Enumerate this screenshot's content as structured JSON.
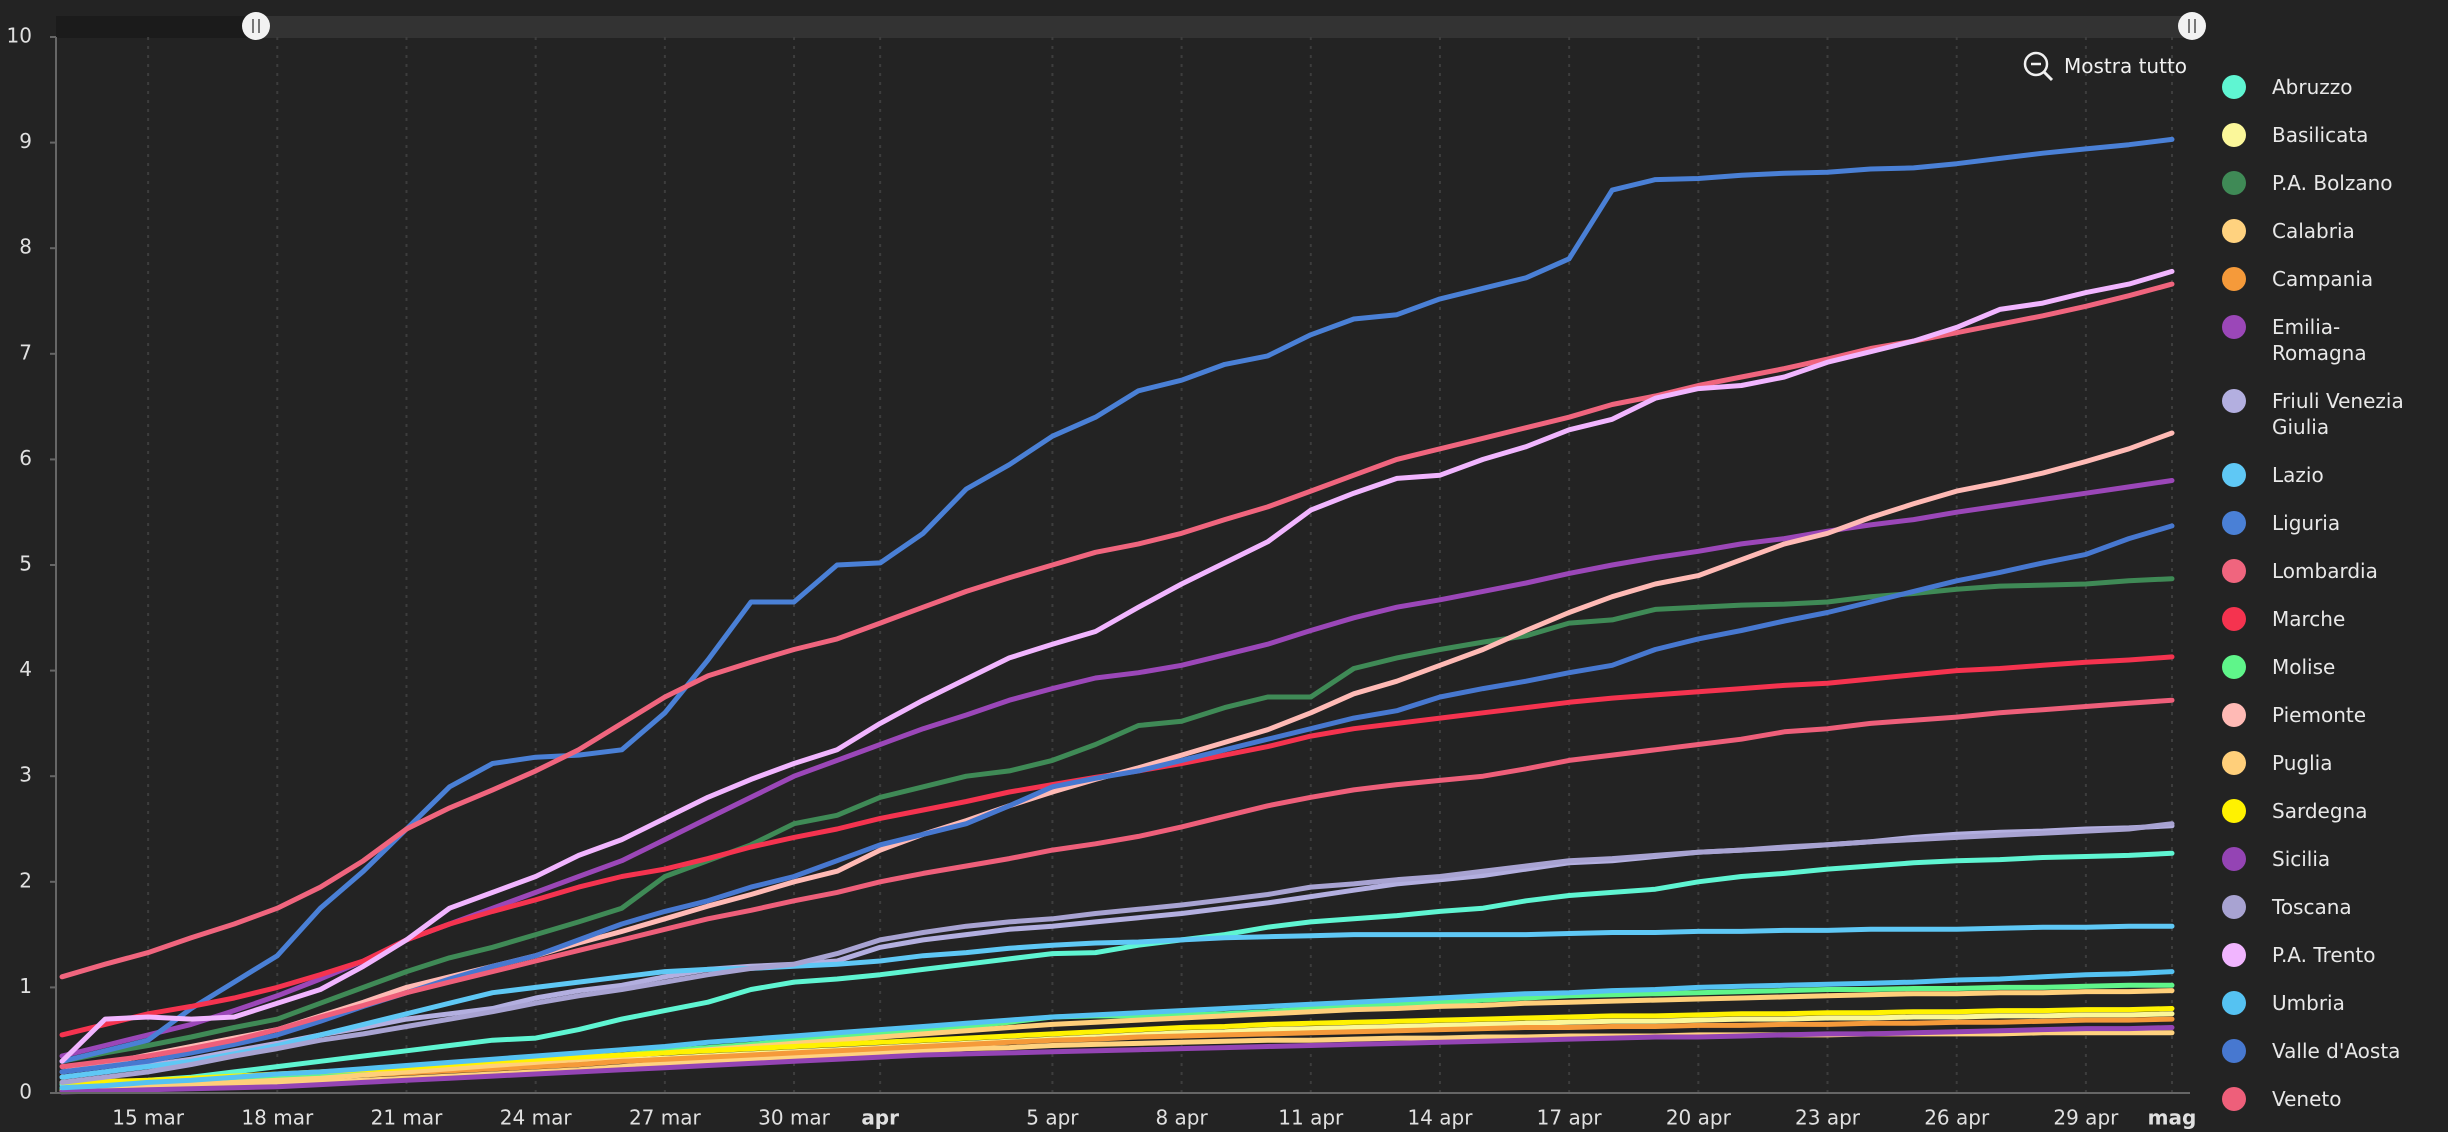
{
  "chart_data": {
    "type": "line",
    "zoom_button": "Mostra tutto",
    "categories": [
      null,
      null,
      "15 mar",
      null,
      null,
      "18 mar",
      null,
      null,
      "21 mar",
      null,
      null,
      "24 mar",
      null,
      null,
      "27 mar",
      null,
      null,
      "30 mar",
      null,
      "apr",
      null,
      null,
      null,
      "5 apr",
      null,
      null,
      "8 apr",
      null,
      null,
      "11 apr",
      null,
      null,
      "14 apr",
      null,
      null,
      "17 apr",
      null,
      null,
      "20 apr",
      null,
      null,
      "23 apr",
      null,
      null,
      "26 apr",
      null,
      null,
      "29 apr",
      null,
      "mag"
    ],
    "ylim": [
      0,
      10
    ],
    "yticks": [
      0,
      1,
      2,
      3,
      4,
      5,
      6,
      7,
      8,
      9,
      10
    ],
    "grid": true,
    "legend": "right",
    "series": [
      {
        "name": "Abruzzo",
        "color": "#5ff5d2",
        "values": [
          0.08,
          0.1,
          0.12,
          0.15,
          0.2,
          0.25,
          0.3,
          0.35,
          0.4,
          0.45,
          0.5,
          0.52,
          0.6,
          0.7,
          0.78,
          0.86,
          0.98,
          1.05,
          1.08,
          1.12,
          1.17,
          1.22,
          1.27,
          1.32,
          1.33,
          1.4,
          1.45,
          1.5,
          1.57,
          1.62,
          1.65,
          1.68,
          1.72,
          1.75,
          1.82,
          1.87,
          1.9,
          1.93,
          2.0,
          2.05,
          2.08,
          2.12,
          2.15,
          2.18,
          2.2,
          2.21,
          2.23,
          2.24,
          2.25,
          2.27
        ]
      },
      {
        "name": "Basilicata",
        "color": "#fbf79a",
        "values": [
          0.05,
          0.06,
          0.08,
          0.1,
          0.12,
          0.14,
          0.16,
          0.18,
          0.2,
          0.22,
          0.25,
          0.27,
          0.29,
          0.31,
          0.33,
          0.35,
          0.37,
          0.39,
          0.41,
          0.43,
          0.45,
          0.47,
          0.49,
          0.51,
          0.53,
          0.55,
          0.57,
          0.58,
          0.6,
          0.61,
          0.62,
          0.63,
          0.64,
          0.65,
          0.66,
          0.67,
          0.68,
          0.68,
          0.69,
          0.7,
          0.7,
          0.71,
          0.71,
          0.72,
          0.72,
          0.73,
          0.73,
          0.74,
          0.74,
          0.75
        ]
      },
      {
        "name": "P.A. Bolzano",
        "color": "#3f8a56",
        "values": [
          0.3,
          0.38,
          0.45,
          0.53,
          0.62,
          0.7,
          0.85,
          1.0,
          1.15,
          1.28,
          1.38,
          1.5,
          1.62,
          1.75,
          2.05,
          2.2,
          2.35,
          2.55,
          2.63,
          2.8,
          2.9,
          3.0,
          3.05,
          3.15,
          3.3,
          3.48,
          3.52,
          3.65,
          3.75,
          3.75,
          4.02,
          4.12,
          4.2,
          4.27,
          4.33,
          4.45,
          4.48,
          4.58,
          4.6,
          4.62,
          4.63,
          4.65,
          4.7,
          4.73,
          4.77,
          4.8,
          4.81,
          4.82,
          4.85,
          4.87
        ]
      },
      {
        "name": "Calabria",
        "color": "#ffd27f",
        "values": [
          0.02,
          0.03,
          0.04,
          0.05,
          0.06,
          0.08,
          0.1,
          0.12,
          0.14,
          0.16,
          0.18,
          0.2,
          0.22,
          0.25,
          0.28,
          0.3,
          0.32,
          0.34,
          0.36,
          0.38,
          0.4,
          0.42,
          0.43,
          0.45,
          0.46,
          0.47,
          0.48,
          0.49,
          0.5,
          0.5,
          0.51,
          0.52,
          0.52,
          0.53,
          0.53,
          0.54,
          0.54,
          0.54,
          0.55,
          0.55,
          0.55,
          0.55,
          0.56,
          0.56,
          0.56,
          0.56,
          0.57,
          0.57,
          0.57,
          0.57
        ]
      },
      {
        "name": "Campania",
        "color": "#f59a3a",
        "values": [
          0.03,
          0.05,
          0.07,
          0.09,
          0.11,
          0.13,
          0.15,
          0.17,
          0.19,
          0.21,
          0.23,
          0.25,
          0.27,
          0.3,
          0.32,
          0.34,
          0.36,
          0.38,
          0.4,
          0.42,
          0.44,
          0.46,
          0.48,
          0.5,
          0.51,
          0.53,
          0.54,
          0.55,
          0.56,
          0.57,
          0.58,
          0.59,
          0.6,
          0.61,
          0.62,
          0.62,
          0.63,
          0.63,
          0.64,
          0.64,
          0.65,
          0.65,
          0.66,
          0.66,
          0.67,
          0.67,
          0.68,
          0.69,
          0.69,
          0.7
        ]
      },
      {
        "name": "Emilia-Romagna",
        "color": "#9b47b8",
        "values": [
          0.35,
          0.45,
          0.55,
          0.65,
          0.78,
          0.92,
          1.08,
          1.25,
          1.45,
          1.6,
          1.75,
          1.9,
          2.05,
          2.2,
          2.4,
          2.6,
          2.8,
          3.0,
          3.15,
          3.3,
          3.45,
          3.58,
          3.72,
          3.83,
          3.93,
          3.98,
          4.05,
          4.15,
          4.25,
          4.38,
          4.5,
          4.6,
          4.67,
          4.75,
          4.83,
          4.92,
          5.0,
          5.07,
          5.13,
          5.2,
          5.25,
          5.32,
          5.38,
          5.43,
          5.5,
          5.56,
          5.62,
          5.68,
          5.74,
          5.8
        ]
      },
      {
        "name": "Friuli Venezia Giulia",
        "color": "#b3afe0",
        "values": [
          0.15,
          0.2,
          0.26,
          0.32,
          0.4,
          0.47,
          0.55,
          0.62,
          0.7,
          0.75,
          0.8,
          0.9,
          0.97,
          1.02,
          1.1,
          1.17,
          1.2,
          1.22,
          1.25,
          1.38,
          1.45,
          1.5,
          1.55,
          1.58,
          1.62,
          1.66,
          1.7,
          1.75,
          1.8,
          1.86,
          1.92,
          1.98,
          2.02,
          2.06,
          2.12,
          2.18,
          2.2,
          2.24,
          2.28,
          2.3,
          2.32,
          2.35,
          2.38,
          2.42,
          2.45,
          2.47,
          2.48,
          2.5,
          2.51,
          2.53
        ]
      },
      {
        "name": "Lazio",
        "color": "#5fc8f5",
        "values": [
          0.15,
          0.2,
          0.25,
          0.3,
          0.37,
          0.45,
          0.55,
          0.65,
          0.75,
          0.85,
          0.95,
          1.0,
          1.05,
          1.1,
          1.15,
          1.17,
          1.18,
          1.2,
          1.22,
          1.25,
          1.3,
          1.33,
          1.37,
          1.4,
          1.42,
          1.43,
          1.45,
          1.47,
          1.48,
          1.49,
          1.5,
          1.5,
          1.5,
          1.5,
          1.5,
          1.51,
          1.52,
          1.52,
          1.53,
          1.53,
          1.54,
          1.54,
          1.55,
          1.55,
          1.55,
          1.56,
          1.57,
          1.57,
          1.58,
          1.58
        ]
      },
      {
        "name": "Liguria",
        "color": "#4a80d6",
        "values": [
          0.3,
          0.4,
          0.5,
          0.8,
          1.05,
          1.3,
          1.75,
          2.1,
          2.5,
          2.9,
          3.12,
          3.18,
          3.2,
          3.25,
          3.6,
          4.1,
          4.65,
          4.65,
          5.0,
          5.02,
          5.3,
          5.72,
          5.95,
          6.22,
          6.4,
          6.65,
          6.75,
          6.9,
          6.98,
          7.18,
          7.33,
          7.37,
          7.52,
          7.62,
          7.72,
          7.9,
          8.55,
          8.65,
          8.66,
          8.69,
          8.71,
          8.72,
          8.75,
          8.76,
          8.8,
          8.85,
          8.9,
          8.94,
          8.98,
          9.03
        ]
      },
      {
        "name": "Lombardia",
        "color": "#f0657e",
        "values": [
          1.1,
          1.22,
          1.33,
          1.47,
          1.6,
          1.75,
          1.95,
          2.2,
          2.5,
          2.7,
          2.87,
          3.05,
          3.25,
          3.5,
          3.75,
          3.95,
          4.08,
          4.2,
          4.3,
          4.45,
          4.6,
          4.75,
          4.88,
          5.0,
          5.12,
          5.2,
          5.3,
          5.43,
          5.55,
          5.7,
          5.85,
          6.0,
          6.1,
          6.2,
          6.3,
          6.4,
          6.52,
          6.6,
          6.7,
          6.78,
          6.86,
          6.95,
          7.05,
          7.12,
          7.2,
          7.28,
          7.36,
          7.45,
          7.55,
          7.66
        ]
      },
      {
        "name": "Marche",
        "color": "#f5334f",
        "values": [
          0.55,
          0.65,
          0.75,
          0.82,
          0.9,
          1.0,
          1.12,
          1.25,
          1.45,
          1.6,
          1.72,
          1.83,
          1.95,
          2.05,
          2.12,
          2.22,
          2.33,
          2.42,
          2.5,
          2.6,
          2.68,
          2.76,
          2.85,
          2.92,
          2.99,
          3.05,
          3.12,
          3.2,
          3.28,
          3.38,
          3.45,
          3.5,
          3.55,
          3.6,
          3.65,
          3.7,
          3.74,
          3.77,
          3.8,
          3.83,
          3.86,
          3.88,
          3.92,
          3.96,
          4.0,
          4.02,
          4.05,
          4.08,
          4.1,
          4.13
        ]
      },
      {
        "name": "Molise",
        "color": "#5ff58a",
        "values": [
          0.03,
          0.05,
          0.07,
          0.1,
          0.12,
          0.14,
          0.16,
          0.19,
          0.22,
          0.25,
          0.28,
          0.3,
          0.33,
          0.36,
          0.4,
          0.43,
          0.46,
          0.5,
          0.53,
          0.56,
          0.6,
          0.63,
          0.67,
          0.72,
          0.73,
          0.73,
          0.74,
          0.75,
          0.77,
          0.8,
          0.83,
          0.84,
          0.86,
          0.88,
          0.9,
          0.92,
          0.93,
          0.94,
          0.95,
          0.96,
          0.97,
          0.98,
          0.98,
          0.99,
          0.99,
          1.0,
          1.0,
          1.01,
          1.02,
          1.02
        ]
      },
      {
        "name": "Piemonte",
        "color": "#ffbab5",
        "values": [
          0.2,
          0.28,
          0.36,
          0.44,
          0.52,
          0.6,
          0.73,
          0.86,
          1.0,
          1.1,
          1.2,
          1.3,
          1.42,
          1.53,
          1.65,
          1.77,
          1.88,
          2.0,
          2.1,
          2.3,
          2.45,
          2.58,
          2.72,
          2.85,
          2.97,
          3.08,
          3.2,
          3.32,
          3.44,
          3.6,
          3.78,
          3.9,
          4.05,
          4.2,
          4.38,
          4.55,
          4.7,
          4.82,
          4.9,
          5.05,
          5.2,
          5.3,
          5.45,
          5.58,
          5.7,
          5.78,
          5.87,
          5.98,
          6.1,
          6.25
        ]
      },
      {
        "name": "Puglia",
        "color": "#ffcf7a",
        "values": [
          0.02,
          0.04,
          0.06,
          0.08,
          0.1,
          0.12,
          0.14,
          0.17,
          0.2,
          0.23,
          0.26,
          0.29,
          0.32,
          0.35,
          0.38,
          0.41,
          0.44,
          0.47,
          0.5,
          0.53,
          0.56,
          0.59,
          0.62,
          0.65,
          0.67,
          0.69,
          0.71,
          0.73,
          0.75,
          0.77,
          0.79,
          0.8,
          0.82,
          0.83,
          0.85,
          0.86,
          0.87,
          0.88,
          0.89,
          0.9,
          0.91,
          0.92,
          0.93,
          0.94,
          0.94,
          0.95,
          0.95,
          0.96,
          0.96,
          0.97
        ]
      },
      {
        "name": "Sardegna",
        "color": "#fff200",
        "values": [
          0.1,
          0.11,
          0.12,
          0.14,
          0.16,
          0.18,
          0.2,
          0.22,
          0.24,
          0.27,
          0.3,
          0.32,
          0.34,
          0.36,
          0.38,
          0.4,
          0.42,
          0.44,
          0.46,
          0.48,
          0.5,
          0.52,
          0.54,
          0.56,
          0.58,
          0.6,
          0.62,
          0.63,
          0.65,
          0.66,
          0.67,
          0.68,
          0.69,
          0.7,
          0.71,
          0.72,
          0.73,
          0.73,
          0.74,
          0.75,
          0.75,
          0.76,
          0.76,
          0.77,
          0.77,
          0.78,
          0.78,
          0.79,
          0.79,
          0.8
        ]
      },
      {
        "name": "Sicilia",
        "color": "#9444b4",
        "values": [
          0.01,
          0.02,
          0.03,
          0.04,
          0.05,
          0.06,
          0.08,
          0.1,
          0.12,
          0.14,
          0.16,
          0.18,
          0.2,
          0.22,
          0.24,
          0.26,
          0.28,
          0.3,
          0.32,
          0.34,
          0.36,
          0.37,
          0.38,
          0.39,
          0.4,
          0.41,
          0.42,
          0.43,
          0.44,
          0.45,
          0.46,
          0.47,
          0.48,
          0.49,
          0.5,
          0.51,
          0.52,
          0.53,
          0.53,
          0.54,
          0.55,
          0.56,
          0.56,
          0.57,
          0.58,
          0.59,
          0.6,
          0.61,
          0.61,
          0.62
        ]
      },
      {
        "name": "Toscana",
        "color": "#a8a3d2",
        "values": [
          0.1,
          0.15,
          0.2,
          0.27,
          0.35,
          0.42,
          0.5,
          0.56,
          0.63,
          0.7,
          0.77,
          0.85,
          0.92,
          0.98,
          1.05,
          1.12,
          1.18,
          1.22,
          1.32,
          1.45,
          1.52,
          1.58,
          1.62,
          1.65,
          1.7,
          1.74,
          1.78,
          1.83,
          1.88,
          1.95,
          1.98,
          2.02,
          2.05,
          2.1,
          2.15,
          2.2,
          2.22,
          2.25,
          2.28,
          2.3,
          2.33,
          2.35,
          2.38,
          2.4,
          2.42,
          2.44,
          2.46,
          2.48,
          2.5,
          2.55
        ]
      },
      {
        "name": "P.A. Trento",
        "color": "#f1b5ff",
        "values": [
          0.3,
          0.7,
          0.72,
          0.7,
          0.72,
          0.85,
          0.98,
          1.2,
          1.45,
          1.75,
          1.9,
          2.05,
          2.25,
          2.4,
          2.6,
          2.8,
          2.97,
          3.12,
          3.25,
          3.5,
          3.72,
          3.92,
          4.12,
          4.25,
          4.37,
          4.6,
          4.82,
          5.02,
          5.22,
          5.52,
          5.68,
          5.82,
          5.85,
          6.0,
          6.12,
          6.28,
          6.38,
          6.58,
          6.67,
          6.7,
          6.78,
          6.92,
          7.02,
          7.12,
          7.25,
          7.42,
          7.48,
          7.58,
          7.66,
          7.78
        ]
      },
      {
        "name": "Umbria",
        "color": "#55c2f2",
        "values": [
          0.05,
          0.07,
          0.1,
          0.12,
          0.15,
          0.18,
          0.2,
          0.23,
          0.26,
          0.29,
          0.32,
          0.35,
          0.38,
          0.41,
          0.44,
          0.48,
          0.51,
          0.54,
          0.57,
          0.6,
          0.63,
          0.66,
          0.69,
          0.72,
          0.74,
          0.76,
          0.78,
          0.8,
          0.82,
          0.84,
          0.86,
          0.88,
          0.9,
          0.92,
          0.94,
          0.95,
          0.97,
          0.98,
          1.0,
          1.01,
          1.02,
          1.03,
          1.04,
          1.05,
          1.07,
          1.08,
          1.1,
          1.12,
          1.13,
          1.15
        ]
      },
      {
        "name": "Valle d'Aosta",
        "color": "#4778d0",
        "values": [
          0.2,
          0.25,
          0.3,
          0.38,
          0.46,
          0.55,
          0.68,
          0.82,
          0.95,
          1.08,
          1.2,
          1.3,
          1.45,
          1.6,
          1.72,
          1.82,
          1.95,
          2.05,
          2.2,
          2.35,
          2.45,
          2.55,
          2.72,
          2.9,
          2.98,
          3.05,
          3.15,
          3.25,
          3.35,
          3.45,
          3.55,
          3.62,
          3.75,
          3.83,
          3.9,
          3.98,
          4.05,
          4.2,
          4.3,
          4.38,
          4.47,
          4.55,
          4.65,
          4.75,
          4.85,
          4.93,
          5.02,
          5.1,
          5.25,
          5.37
        ]
      },
      {
        "name": "Veneto",
        "color": "#ee5f7a",
        "values": [
          0.25,
          0.3,
          0.35,
          0.42,
          0.5,
          0.6,
          0.72,
          0.83,
          0.95,
          1.05,
          1.15,
          1.25,
          1.35,
          1.45,
          1.55,
          1.65,
          1.73,
          1.82,
          1.9,
          2.0,
          2.08,
          2.15,
          2.22,
          2.3,
          2.36,
          2.43,
          2.52,
          2.62,
          2.72,
          2.8,
          2.87,
          2.92,
          2.96,
          3.0,
          3.07,
          3.15,
          3.2,
          3.25,
          3.3,
          3.35,
          3.42,
          3.45,
          3.5,
          3.53,
          3.56,
          3.6,
          3.63,
          3.66,
          3.69,
          3.72
        ]
      }
    ]
  }
}
